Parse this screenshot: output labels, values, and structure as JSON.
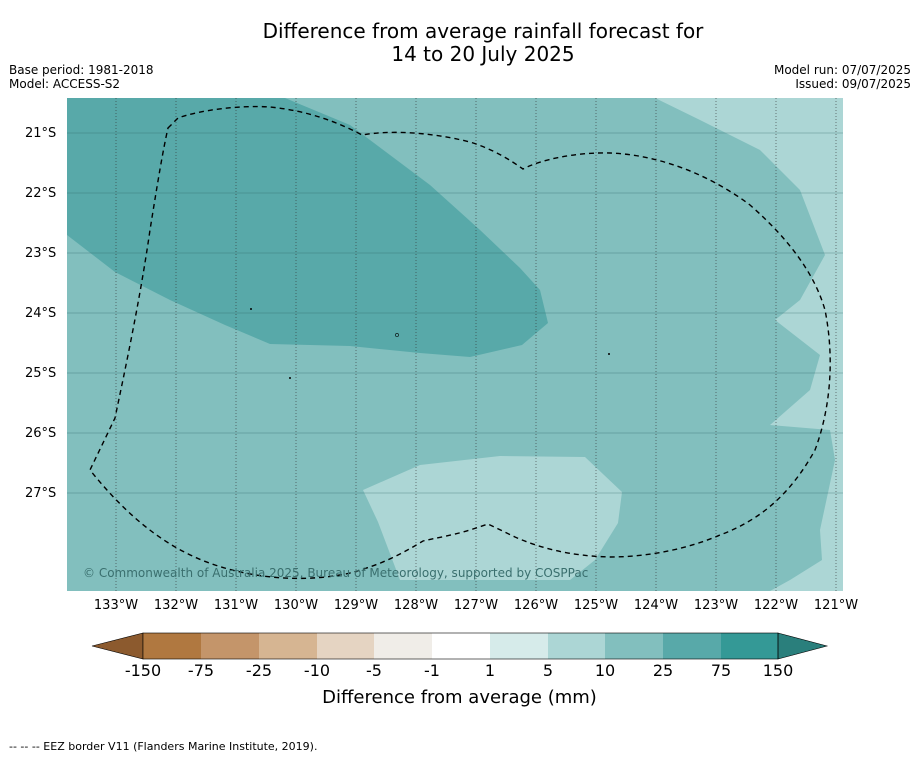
{
  "title": {
    "line1": "Difference from average rainfall forecast for",
    "line2": "14 to 20 July 2025"
  },
  "meta_left": {
    "base_period": "Base period: 1981-2018",
    "model": "Model: ACCESS-S2"
  },
  "meta_right": {
    "model_run": "Model run: 07/07/2025",
    "issued": "Issued: 09/07/2025"
  },
  "map": {
    "longitude_ticks": [
      "133°W",
      "132°W",
      "131°W",
      "130°W",
      "129°W",
      "128°W",
      "127°W",
      "126°W",
      "125°W",
      "124°W",
      "123°W",
      "122°W",
      "121°W"
    ],
    "latitude_ticks": [
      "21°S",
      "22°S",
      "23°S",
      "24°S",
      "25°S",
      "26°S",
      "27°S"
    ],
    "attribution": "© Commonwealth of Australia 2025, Bureau of Meteorology, supported by COSPPac"
  },
  "colorbar": {
    "labels": [
      "-150",
      "-75",
      "-25",
      "-10",
      "-5",
      "-1",
      "1",
      "5",
      "10",
      "25",
      "75",
      "150"
    ],
    "colors": [
      "#8c5a2e",
      "#b07840",
      "#c4956a",
      "#d6b592",
      "#e5d4c2",
      "#f0ede8",
      "#ffffff",
      "#d6ebea",
      "#acd6d5",
      "#82bfbe",
      "#58a9a9",
      "#349996",
      "#2a7f7c"
    ],
    "title": "Difference from average (mm)"
  },
  "footnote": "--  --  -- EEZ border V11 (Flanders Marine Institute, 2019)."
}
